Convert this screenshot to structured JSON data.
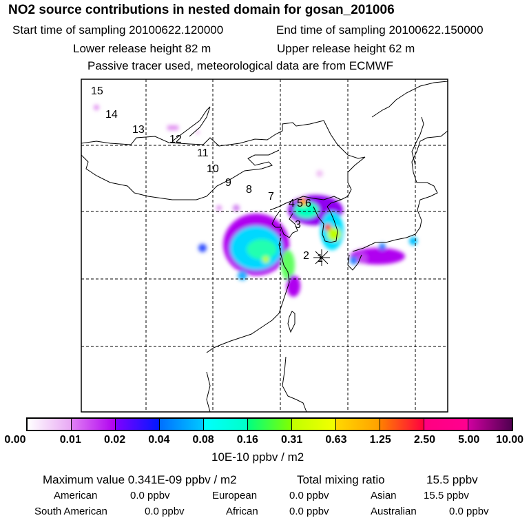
{
  "header": {
    "title": "NO2 source contributions in nested domain for gosan_201006",
    "start_label": "Start time of sampling 20100622.120000",
    "end_label": "End time of sampling 20100622.150000",
    "lower_label": "Lower release height   82 m",
    "upper_label": "Upper release height   62 m",
    "note": "Passive tracer used, meteorological data are from ECMWF"
  },
  "map": {
    "trajectory_labels": [
      "1",
      "2",
      "3",
      "4",
      "5",
      "6",
      "7",
      "8",
      "9",
      "10",
      "11",
      "12",
      "13",
      "14",
      "15"
    ],
    "release_marker_icon": "asterisk-star"
  },
  "colorbar": {
    "labels": [
      "0.00",
      "0.01",
      "0.02",
      "0.04",
      "0.08",
      "0.16",
      "0.31",
      "0.63",
      "1.25",
      "2.50",
      "5.00",
      "10.00"
    ],
    "segment_colors": [
      [
        "#ffffff",
        "#e8a8f4"
      ],
      [
        "#e080f4",
        "#b000f0"
      ],
      [
        "#8000ff",
        "#0018ff"
      ],
      [
        "#0070ff",
        "#00c8ff"
      ],
      [
        "#00ffff",
        "#00ffc8"
      ],
      [
        "#00ff80",
        "#80ff00"
      ],
      [
        "#c0ff00",
        "#f4ff00"
      ],
      [
        "#ffd800",
        "#ffa000"
      ],
      [
        "#ff8000",
        "#ff0040"
      ],
      [
        "#ff0080",
        "#ff0090"
      ],
      [
        "#d000a0",
        "#500050"
      ]
    ],
    "unit": "10E-10 ppbv / m2"
  },
  "summary": {
    "max_label": "Maximum value  0.341E-09 ppbv / m2",
    "total_label": "Total mixing ratio",
    "total_value": "15.5 ppbv",
    "regions": [
      {
        "name": "American",
        "value": "0.0 ppbv"
      },
      {
        "name": "European",
        "value": "0.0 ppbv"
      },
      {
        "name": "Asian",
        "value": "15.5 ppbv"
      },
      {
        "name": "South American",
        "value": "0.0 ppbv"
      },
      {
        "name": "African",
        "value": "0.0 ppbv"
      },
      {
        "name": "Australian",
        "value": "0.0 ppbv"
      }
    ]
  }
}
